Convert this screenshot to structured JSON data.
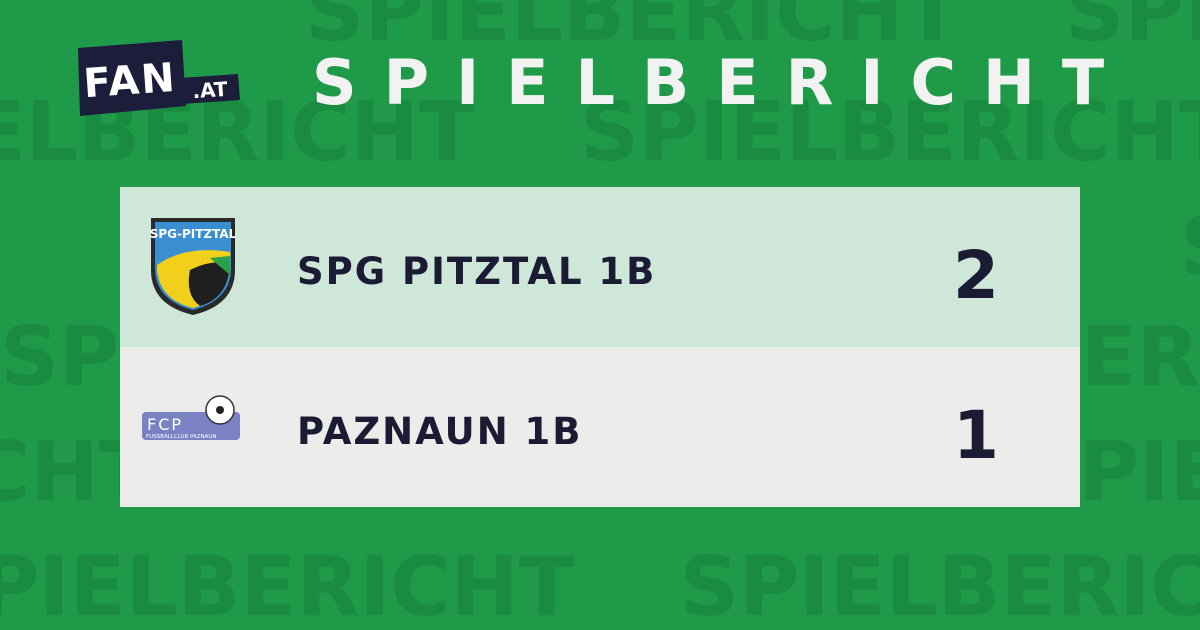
{
  "logo": {
    "name": "FAN",
    "suffix": ".AT"
  },
  "title": "SPIELBERICHT",
  "watermark": "SPIELBERICHT",
  "teams": [
    {
      "name": "SPG PITZTAL 1B",
      "score": "2",
      "logo_text": "SPG-PITZTAL"
    },
    {
      "name": "PAZNAUN 1B",
      "score": "1",
      "logo_text": "FCP",
      "logo_subtext": "FUSSBALLCLUB PAZNAUN"
    }
  ]
}
